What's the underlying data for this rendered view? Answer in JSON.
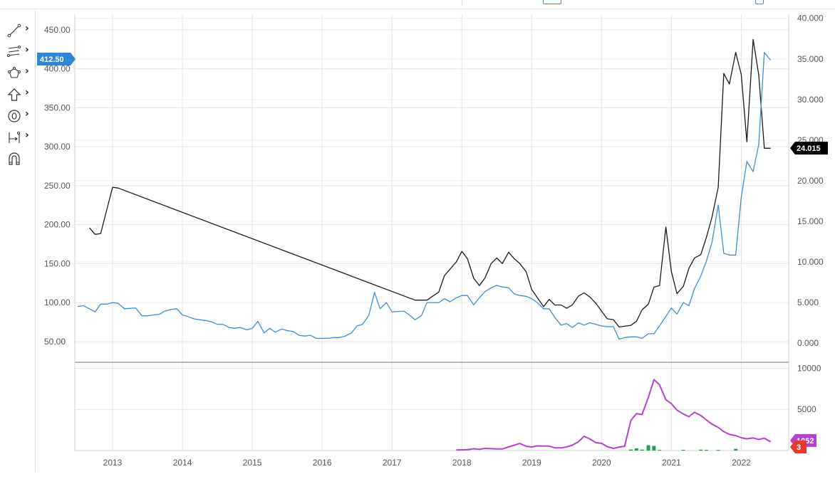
{
  "toolbar": {
    "tools": [
      {
        "icon": "line-tool-icon",
        "has_submenu": true
      },
      {
        "icon": "multi-line-tool-icon",
        "has_submenu": true
      },
      {
        "icon": "shape-tool-icon",
        "has_submenu": true
      },
      {
        "icon": "arrow-up-icon",
        "has_submenu": true
      },
      {
        "icon": "circle-zero-icon",
        "has_submenu": true
      },
      {
        "icon": "measure-tool-icon",
        "has_submenu": true
      },
      {
        "icon": "magnet-icon",
        "has_submenu": false
      }
    ]
  },
  "colors": {
    "black_series": "#1a1a1a",
    "blue_series": "#3a8fd6",
    "purple_series": "#b83fd0",
    "green_bars": "#1fa24a",
    "left_badge": "#2f86d4",
    "right_badge": "#000000",
    "purple_badge": "#b83fd0",
    "red_badge": "#e8392e",
    "grid": "#e4e4e4"
  },
  "chart_data": [
    {
      "type": "line",
      "x_ticks": [
        "2013",
        "2014",
        "2015",
        "2016",
        "2017",
        "2018",
        "2019",
        "2020",
        "2021",
        "2022"
      ],
      "left_axis": {
        "ticks": [
          "50.00",
          "100.00",
          "150.00",
          "200.00",
          "250.00",
          "300.00",
          "350.00",
          "400.00",
          "450.00"
        ],
        "range": [
          27,
          470
        ]
      },
      "right_axis": {
        "ticks": [
          "0.000",
          "5.000",
          "10.000",
          "15.000",
          "20.000",
          "25.000",
          "30.000",
          "35.000",
          "40.000"
        ],
        "range": [
          -2,
          40.5
        ]
      },
      "badges": {
        "left_value": "412.50",
        "right_value": "24.015"
      },
      "series": [
        {
          "axis": "right",
          "color": "#1a1a1a",
          "points": [
            [
              2012.67,
              14.2
            ],
            [
              2012.75,
              13.4
            ],
            [
              2012.83,
              13.5
            ],
            [
              2013.0,
              19.2
            ],
            [
              2013.08,
              19.1
            ],
            [
              2017.33,
              5.3
            ],
            [
              2017.5,
              5.3
            ],
            [
              2017.67,
              6.3
            ],
            [
              2017.75,
              8.3
            ],
            [
              2017.92,
              10.0
            ],
            [
              2018.0,
              11.3
            ],
            [
              2018.08,
              10.4
            ],
            [
              2018.17,
              8.0
            ],
            [
              2018.25,
              7.1
            ],
            [
              2018.33,
              8.0
            ],
            [
              2018.42,
              9.8
            ],
            [
              2018.5,
              10.5
            ],
            [
              2018.58,
              9.8
            ],
            [
              2018.67,
              11.2
            ],
            [
              2018.75,
              10.4
            ],
            [
              2018.83,
              9.8
            ],
            [
              2018.92,
              8.8
            ],
            [
              2019.0,
              6.6
            ],
            [
              2019.17,
              4.5
            ],
            [
              2019.25,
              5.4
            ],
            [
              2019.33,
              4.7
            ],
            [
              2019.42,
              4.7
            ],
            [
              2019.5,
              4.3
            ],
            [
              2019.58,
              4.7
            ],
            [
              2019.67,
              5.8
            ],
            [
              2019.75,
              6.2
            ],
            [
              2019.83,
              5.7
            ],
            [
              2019.92,
              4.9
            ],
            [
              2020.08,
              3.0
            ],
            [
              2020.17,
              2.9
            ],
            [
              2020.25,
              2.0
            ],
            [
              2020.42,
              2.2
            ],
            [
              2020.5,
              2.7
            ],
            [
              2020.58,
              4.1
            ],
            [
              2020.67,
              4.8
            ],
            [
              2020.75,
              6.9
            ],
            [
              2020.83,
              7.1
            ],
            [
              2020.92,
              14.3
            ],
            [
              2021.0,
              8.8
            ],
            [
              2021.08,
              6.1
            ],
            [
              2021.17,
              7.0
            ],
            [
              2021.25,
              9.2
            ],
            [
              2021.33,
              10.5
            ],
            [
              2021.42,
              10.9
            ],
            [
              2021.5,
              13.0
            ],
            [
              2021.58,
              15.5
            ],
            [
              2021.67,
              19.2
            ],
            [
              2021.75,
              33.2
            ],
            [
              2021.83,
              31.9
            ],
            [
              2021.92,
              35.8
            ],
            [
              2022.0,
              33.1
            ],
            [
              2022.08,
              24.8
            ],
            [
              2022.17,
              37.4
            ],
            [
              2022.25,
              33.0
            ],
            [
              2022.33,
              24.0
            ],
            [
              2022.42,
              24.0
            ]
          ]
        },
        {
          "axis": "left",
          "color": "#3a8fd6",
          "points": [
            [
              2012.5,
              95
            ],
            [
              2012.58,
              96
            ],
            [
              2012.67,
              92
            ],
            [
              2012.75,
              88
            ],
            [
              2012.83,
              98
            ],
            [
              2012.92,
              98
            ],
            [
              2013.0,
              100
            ],
            [
              2013.08,
              99
            ],
            [
              2013.17,
              92
            ],
            [
              2013.33,
              93
            ],
            [
              2013.42,
              83
            ],
            [
              2013.5,
              83
            ],
            [
              2013.58,
              84
            ],
            [
              2013.67,
              85
            ],
            [
              2013.75,
              89
            ],
            [
              2013.83,
              91
            ],
            [
              2013.92,
              92
            ],
            [
              2014.0,
              84
            ],
            [
              2014.08,
              82
            ],
            [
              2014.17,
              79
            ],
            [
              2014.33,
              77
            ],
            [
              2014.42,
              75
            ],
            [
              2014.5,
              72
            ],
            [
              2014.58,
              72
            ],
            [
              2014.67,
              68
            ],
            [
              2014.75,
              67
            ],
            [
              2014.83,
              68
            ],
            [
              2014.92,
              65
            ],
            [
              2015.0,
              67
            ],
            [
              2015.08,
              76
            ],
            [
              2015.17,
              61
            ],
            [
              2015.25,
              67
            ],
            [
              2015.33,
              62
            ],
            [
              2015.42,
              66
            ],
            [
              2015.5,
              64
            ],
            [
              2015.58,
              63
            ],
            [
              2015.67,
              58
            ],
            [
              2015.75,
              57
            ],
            [
              2015.83,
              58
            ],
            [
              2015.92,
              54
            ],
            [
              2016.0,
              54
            ],
            [
              2016.08,
              54
            ],
            [
              2016.17,
              55
            ],
            [
              2016.25,
              55
            ],
            [
              2016.33,
              57
            ],
            [
              2016.42,
              61
            ],
            [
              2016.5,
              70
            ],
            [
              2016.58,
              72
            ],
            [
              2016.67,
              84
            ],
            [
              2016.75,
              113
            ],
            [
              2016.83,
              92
            ],
            [
              2016.92,
              100
            ],
            [
              2017.0,
              88
            ],
            [
              2017.17,
              89
            ],
            [
              2017.25,
              84
            ],
            [
              2017.33,
              78
            ],
            [
              2017.42,
              83
            ],
            [
              2017.5,
              100
            ],
            [
              2017.58,
              100
            ],
            [
              2017.67,
              100
            ],
            [
              2017.75,
              105
            ],
            [
              2017.83,
              101
            ],
            [
              2017.92,
              106
            ],
            [
              2018.0,
              109
            ],
            [
              2018.08,
              109
            ],
            [
              2018.17,
              97
            ],
            [
              2018.25,
              106
            ],
            [
              2018.33,
              114
            ],
            [
              2018.42,
              119
            ],
            [
              2018.5,
              122
            ],
            [
              2018.58,
              120
            ],
            [
              2018.67,
              119
            ],
            [
              2018.75,
              111
            ],
            [
              2018.83,
              109
            ],
            [
              2018.92,
              108
            ],
            [
              2019.0,
              105
            ],
            [
              2019.08,
              100
            ],
            [
              2019.17,
              92
            ],
            [
              2019.25,
              92
            ],
            [
              2019.33,
              81
            ],
            [
              2019.42,
              71
            ],
            [
              2019.5,
              73
            ],
            [
              2019.58,
              68
            ],
            [
              2019.67,
              74
            ],
            [
              2019.75,
              71
            ],
            [
              2019.83,
              74
            ],
            [
              2019.92,
              72
            ],
            [
              2020.0,
              70
            ],
            [
              2020.08,
              69
            ],
            [
              2020.17,
              69
            ],
            [
              2020.25,
              53
            ],
            [
              2020.33,
              55
            ],
            [
              2020.42,
              56
            ],
            [
              2020.5,
              56
            ],
            [
              2020.58,
              54
            ],
            [
              2020.67,
              60
            ],
            [
              2020.75,
              60
            ],
            [
              2020.83,
              70
            ],
            [
              2020.92,
              82
            ],
            [
              2021.0,
              93
            ],
            [
              2021.08,
              85
            ],
            [
              2021.17,
              100
            ],
            [
              2021.25,
              96
            ],
            [
              2021.33,
              118
            ],
            [
              2021.42,
              134
            ],
            [
              2021.5,
              153
            ],
            [
              2021.58,
              177
            ],
            [
              2021.67,
              225
            ],
            [
              2021.75,
              163
            ],
            [
              2021.83,
              161
            ],
            [
              2021.92,
              161
            ],
            [
              2022.0,
              235
            ],
            [
              2022.08,
              281
            ],
            [
              2022.17,
              268
            ],
            [
              2022.25,
              303
            ],
            [
              2022.33,
              421
            ],
            [
              2022.42,
              411
            ]
          ]
        }
      ]
    },
    {
      "type": "line",
      "y_ticks": [
        "5000",
        "10000"
      ],
      "y_range": [
        0,
        10300
      ],
      "badges": {
        "purple_value": "1052",
        "red_value": "3"
      },
      "series": [
        {
          "color": "#b83fd0",
          "points": [
            [
              2017.92,
              60
            ],
            [
              2018.08,
              110
            ],
            [
              2018.17,
              220
            ],
            [
              2018.25,
              150
            ],
            [
              2018.33,
              260
            ],
            [
              2018.5,
              200
            ],
            [
              2018.58,
              190
            ],
            [
              2018.67,
              450
            ],
            [
              2018.75,
              650
            ],
            [
              2018.83,
              860
            ],
            [
              2018.92,
              520
            ],
            [
              2019.0,
              430
            ],
            [
              2019.08,
              560
            ],
            [
              2019.25,
              540
            ],
            [
              2019.33,
              330
            ],
            [
              2019.42,
              330
            ],
            [
              2019.5,
              430
            ],
            [
              2019.58,
              650
            ],
            [
              2019.67,
              1070
            ],
            [
              2019.75,
              1740
            ],
            [
              2019.83,
              1420
            ],
            [
              2019.92,
              950
            ],
            [
              2020.0,
              870
            ],
            [
              2020.08,
              480
            ],
            [
              2020.17,
              260
            ],
            [
              2020.25,
              420
            ],
            [
              2020.33,
              520
            ],
            [
              2020.42,
              3660
            ],
            [
              2020.5,
              4490
            ],
            [
              2020.58,
              4380
            ],
            [
              2020.67,
              6460
            ],
            [
              2020.75,
              8620
            ],
            [
              2020.83,
              8000
            ],
            [
              2020.92,
              6180
            ],
            [
              2021.0,
              5700
            ],
            [
              2021.08,
              4920
            ],
            [
              2021.17,
              4440
            ],
            [
              2021.25,
              4120
            ],
            [
              2021.33,
              4660
            ],
            [
              2021.42,
              4260
            ],
            [
              2021.5,
              3720
            ],
            [
              2021.58,
              3210
            ],
            [
              2021.67,
              2810
            ],
            [
              2021.75,
              2290
            ],
            [
              2021.83,
              1960
            ],
            [
              2021.92,
              1820
            ],
            [
              2022.0,
              1560
            ],
            [
              2022.08,
              1420
            ],
            [
              2022.17,
              1530
            ],
            [
              2022.25,
              1340
            ],
            [
              2022.33,
              1500
            ],
            [
              2022.42,
              1052
            ]
          ]
        }
      ],
      "bars": {
        "color": "#1fa24a",
        "points": [
          [
            2020.42,
            130
          ],
          [
            2020.5,
            260
          ],
          [
            2020.58,
            120
          ],
          [
            2020.67,
            640
          ],
          [
            2020.75,
            570
          ],
          [
            2020.83,
            70
          ],
          [
            2021.17,
            90
          ],
          [
            2021.42,
            110
          ],
          [
            2021.5,
            80
          ],
          [
            2021.67,
            70
          ],
          [
            2021.92,
            200
          ]
        ]
      }
    }
  ]
}
